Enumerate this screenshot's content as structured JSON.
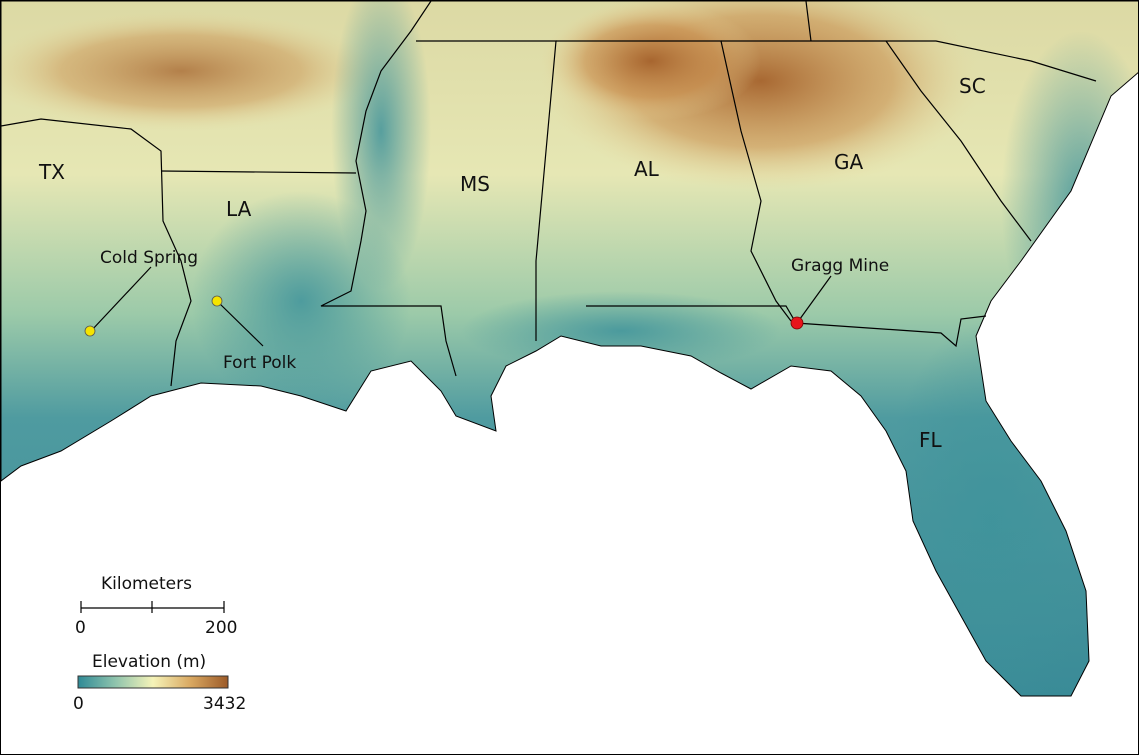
{
  "states": [
    {
      "abbr": "TX"
    },
    {
      "abbr": "LA"
    },
    {
      "abbr": "MS"
    },
    {
      "abbr": "AL"
    },
    {
      "abbr": "GA"
    },
    {
      "abbr": "SC"
    },
    {
      "abbr": "FL"
    }
  ],
  "sites": [
    {
      "name": "Cold Spring",
      "color": "#f5e400"
    },
    {
      "name": "Fort Polk",
      "color": "#f5e400"
    },
    {
      "name": "Gragg Mine",
      "color": "#e8141b"
    }
  ],
  "scale_bar": {
    "title": "Kilometers",
    "min_label": "0",
    "max_label": "200"
  },
  "elevation_legend": {
    "title": "Elevation (m)",
    "min_label": "0",
    "max_label": "3432",
    "colors": [
      "#2f8a96",
      "#8fc4ad",
      "#f5f3b8",
      "#d9a861",
      "#9c5a28"
    ]
  },
  "colors": {
    "water": "#ffffff",
    "lowland": "#3f919a",
    "midland": "#f0eeb5",
    "highland": "#a8642e",
    "border": "#000000"
  }
}
